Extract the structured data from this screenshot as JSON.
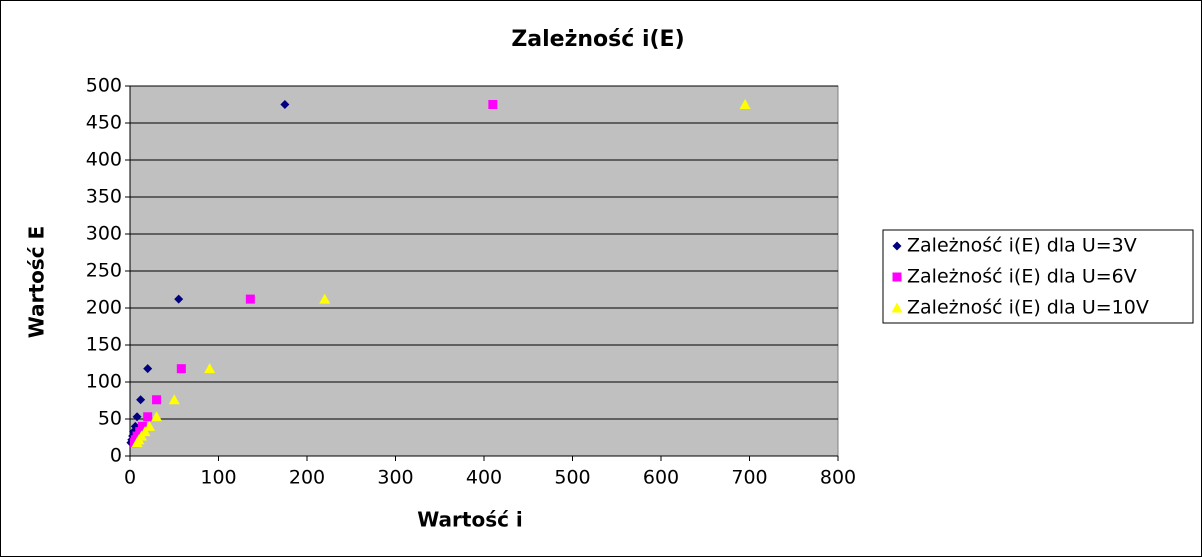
{
  "chart_data": {
    "type": "scatter",
    "title": "Zależność i(E)",
    "x_label": "Wartość i",
    "y_label": "Wartość E",
    "xlim": [
      0,
      800
    ],
    "xticks": [
      0,
      100,
      200,
      300,
      400,
      500,
      600,
      700,
      800
    ],
    "ylim": [
      0,
      500
    ],
    "yticks": [
      0,
      50,
      100,
      150,
      200,
      250,
      300,
      350,
      400,
      450,
      500
    ],
    "grid": true,
    "legend": "right",
    "background": "#c0c0c0",
    "series": [
      {
        "name": "Zależność i(E) dla U=3V",
        "color": "#000080",
        "marker": "diamond",
        "x": [
          175,
          55,
          20,
          12,
          8,
          6,
          4,
          3,
          2,
          1
        ],
        "values": [
          475,
          212,
          118,
          76,
          53,
          40,
          33,
          27,
          22,
          18
        ]
      },
      {
        "name": "Zależność i(E) dla U=6V",
        "color": "#ff00ff",
        "marker": "square",
        "x": [
          410,
          136,
          58,
          30,
          20,
          14,
          11,
          8,
          6,
          5
        ],
        "values": [
          475,
          212,
          118,
          76,
          53,
          40,
          33,
          27,
          22,
          18
        ]
      },
      {
        "name": "Zależność i(E) dla U=10V",
        "color": "#ffff00",
        "marker": "triangle",
        "x": [
          695,
          220,
          90,
          50,
          30,
          22,
          17,
          13,
          10,
          8
        ],
        "values": [
          475,
          212,
          118,
          76,
          53,
          40,
          33,
          27,
          22,
          18
        ]
      }
    ]
  }
}
